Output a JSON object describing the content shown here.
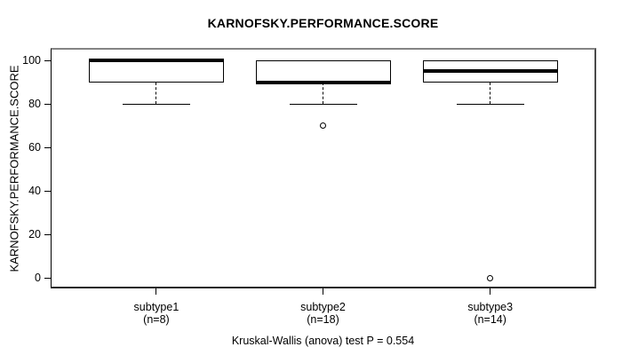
{
  "chart_data": {
    "type": "boxplot",
    "title": "KARNOFSKY.PERFORMANCE.SCORE",
    "ylabel": "KARNOFSKY.PERFORMANCE.SCORE",
    "caption": "Kruskal-Wallis (anova) test P = 0.554",
    "ylim": [
      0,
      100
    ],
    "y_ticks": [
      0,
      20,
      40,
      60,
      80,
      100
    ],
    "grid": false,
    "groups": [
      {
        "label": "subtype1",
        "sublabel": "(n=8)",
        "q1": 90,
        "median": 100,
        "q3": 100,
        "whisker_low": 80,
        "whisker_high": 100,
        "outliers": []
      },
      {
        "label": "subtype2",
        "sublabel": "(n=18)",
        "q1": 90,
        "median": 90,
        "q3": 100,
        "whisker_low": 80,
        "whisker_high": 100,
        "outliers": [
          70
        ]
      },
      {
        "label": "subtype3",
        "sublabel": "(n=14)",
        "q1": 90,
        "median": 95,
        "q3": 100,
        "whisker_low": 80,
        "whisker_high": 100,
        "outliers": [
          0
        ]
      }
    ],
    "colors": {
      "line": "#000000",
      "box_fill": "#ffffff",
      "background": "#ffffff"
    }
  }
}
